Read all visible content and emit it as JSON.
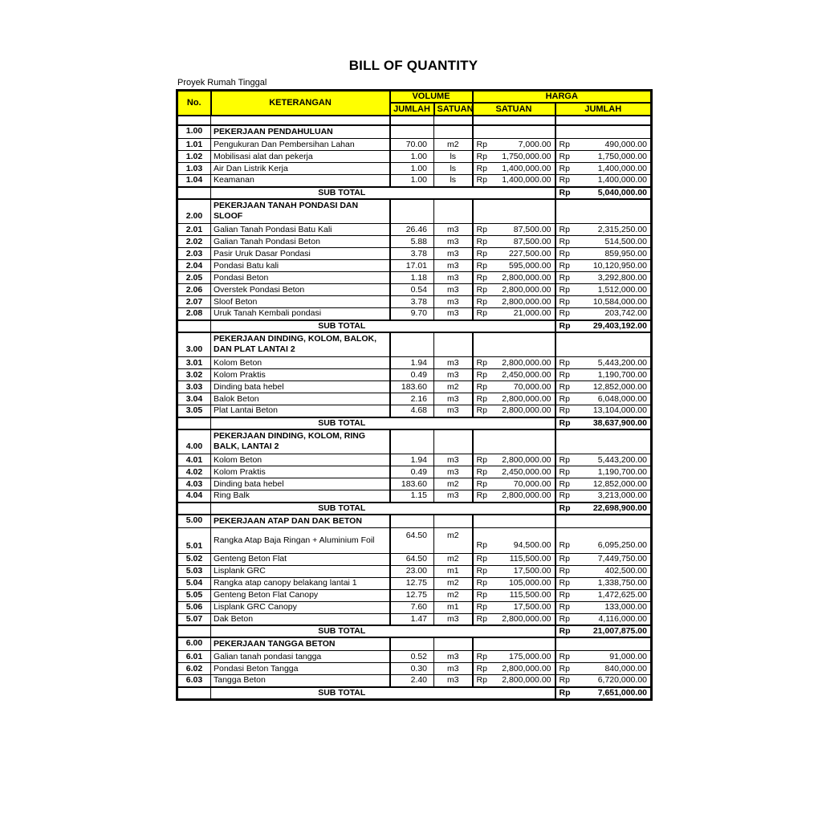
{
  "title": "BILL OF QUANTITY",
  "subtitle": "Proyek Rumah Tinggal",
  "currency": "Rp",
  "sub_total_label": "SUB TOTAL",
  "colors": {
    "header_bg": "#FFFF00",
    "border": "#000000"
  },
  "header": {
    "no": "No.",
    "keterangan": "KETERANGAN",
    "volume": "VOLUME",
    "harga": "HARGA",
    "volume_jumlah": "JUMLAH",
    "volume_satuan": "SATUAN",
    "harga_satuan": "SATUAN",
    "harga_jumlah": "JUMLAH"
  },
  "sections": [
    {
      "no": "1.00",
      "name": "PEKERJAAN PENDAHULUAN",
      "items": [
        {
          "no": "1.01",
          "desc": "Pengukuran Dan Pembersihan Lahan",
          "jumlah": "70.00",
          "satuan": "m2",
          "harga_satuan": "7,000.00",
          "harga_jumlah": "490,000.00"
        },
        {
          "no": "1.02",
          "desc": "Mobilisasi alat dan pekerja",
          "jumlah": "1.00",
          "satuan": "ls",
          "harga_satuan": "1,750,000.00",
          "harga_jumlah": "1,750,000.00"
        },
        {
          "no": "1.03",
          "desc": "Air Dan Listrik Kerja",
          "jumlah": "1.00",
          "satuan": "ls",
          "harga_satuan": "1,400,000.00",
          "harga_jumlah": "1,400,000.00"
        },
        {
          "no": "1.04",
          "desc": "Keamanan",
          "jumlah": "1.00",
          "satuan": "ls",
          "harga_satuan": "1,400,000.00",
          "harga_jumlah": "1,400,000.00"
        }
      ],
      "sub_total": "5,040,000.00"
    },
    {
      "no": "2.00",
      "name": "PEKERJAAN TANAH PONDASI DAN SLOOF",
      "items": [
        {
          "no": "2.01",
          "desc": "Galian Tanah Pondasi Batu Kali",
          "jumlah": "26.46",
          "satuan": "m3",
          "harga_satuan": "87,500.00",
          "harga_jumlah": "2,315,250.00"
        },
        {
          "no": "2.02",
          "desc": "Galian Tanah Pondasi Beton",
          "jumlah": "5.88",
          "satuan": "m3",
          "harga_satuan": "87,500.00",
          "harga_jumlah": "514,500.00"
        },
        {
          "no": "2.03",
          "desc": "Pasir Uruk Dasar Pondasi",
          "jumlah": "3.78",
          "satuan": "m3",
          "harga_satuan": "227,500.00",
          "harga_jumlah": "859,950.00"
        },
        {
          "no": "2.04",
          "desc": "Pondasi Batu kali",
          "jumlah": "17.01",
          "satuan": "m3",
          "harga_satuan": "595,000.00",
          "harga_jumlah": "10,120,950.00"
        },
        {
          "no": "2.05",
          "desc": "Pondasi Beton",
          "jumlah": "1.18",
          "satuan": "m3",
          "harga_satuan": "2,800,000.00",
          "harga_jumlah": "3,292,800.00"
        },
        {
          "no": "2.06",
          "desc": "Overstek Pondasi Beton",
          "jumlah": "0.54",
          "satuan": "m3",
          "harga_satuan": "2,800,000.00",
          "harga_jumlah": "1,512,000.00"
        },
        {
          "no": "2.07",
          "desc": "Sloof Beton",
          "jumlah": "3.78",
          "satuan": "m3",
          "harga_satuan": "2,800,000.00",
          "harga_jumlah": "10,584,000.00"
        },
        {
          "no": "2.08",
          "desc": "Uruk Tanah Kembali pondasi",
          "jumlah": "9.70",
          "satuan": "m3",
          "harga_satuan": "21,000.00",
          "harga_jumlah": "203,742.00"
        }
      ],
      "sub_total": "29,403,192.00"
    },
    {
      "no": "3.00",
      "name": "PEKERJAAN DINDING, KOLOM, BALOK, DAN PLAT LANTAI 2",
      "items": [
        {
          "no": "3.01",
          "desc": "Kolom Beton",
          "jumlah": "1.94",
          "satuan": "m3",
          "harga_satuan": "2,800,000.00",
          "harga_jumlah": "5,443,200.00"
        },
        {
          "no": "3.02",
          "desc": "Kolom Praktis",
          "jumlah": "0.49",
          "satuan": "m3",
          "harga_satuan": "2,450,000.00",
          "harga_jumlah": "1,190,700.00"
        },
        {
          "no": "3.03",
          "desc": "Dinding bata hebel",
          "jumlah": "183.60",
          "satuan": "m2",
          "harga_satuan": "70,000.00",
          "harga_jumlah": "12,852,000.00"
        },
        {
          "no": "3.04",
          "desc": "Balok Beton",
          "jumlah": "2.16",
          "satuan": "m3",
          "harga_satuan": "2,800,000.00",
          "harga_jumlah": "6,048,000.00"
        },
        {
          "no": "3.05",
          "desc": "Plat Lantai Beton",
          "jumlah": "4.68",
          "satuan": "m3",
          "harga_satuan": "2,800,000.00",
          "harga_jumlah": "13,104,000.00"
        }
      ],
      "sub_total": "38,637,900.00"
    },
    {
      "no": "4.00",
      "name": "PEKERJAAN DINDING, KOLOM, RING BALK, LANTAI 2",
      "items": [
        {
          "no": "4.01",
          "desc": "Kolom Beton",
          "jumlah": "1.94",
          "satuan": "m3",
          "harga_satuan": "2,800,000.00",
          "harga_jumlah": "5,443,200.00"
        },
        {
          "no": "4.02",
          "desc": "Kolom Praktis",
          "jumlah": "0.49",
          "satuan": "m3",
          "harga_satuan": "2,450,000.00",
          "harga_jumlah": "1,190,700.00"
        },
        {
          "no": "4.03",
          "desc": "Dinding bata hebel",
          "jumlah": "183.60",
          "satuan": "m2",
          "harga_satuan": "70,000.00",
          "harga_jumlah": "12,852,000.00"
        },
        {
          "no": "4.04",
          "desc": "Ring Balk",
          "jumlah": "1.15",
          "satuan": "m3",
          "harga_satuan": "2,800,000.00",
          "harga_jumlah": "3,213,000.00"
        }
      ],
      "sub_total": "22,698,900.00"
    },
    {
      "no": "5.00",
      "name": "PEKERJAAN ATAP DAN DAK BETON",
      "items": [
        {
          "no": "5.01",
          "desc": "Rangka Atap Baja Ringan + Aluminium Foil",
          "jumlah": "64.50",
          "satuan": "m2",
          "harga_satuan": "94,500.00",
          "harga_jumlah": "6,095,250.00"
        },
        {
          "no": "5.02",
          "desc": "Genteng Beton Flat",
          "jumlah": "64.50",
          "satuan": "m2",
          "harga_satuan": "115,500.00",
          "harga_jumlah": "7,449,750.00"
        },
        {
          "no": "5.03",
          "desc": "Lisplank GRC",
          "jumlah": "23.00",
          "satuan": "m1",
          "harga_satuan": "17,500.00",
          "harga_jumlah": "402,500.00"
        },
        {
          "no": "5.04",
          "desc": "Rangka atap canopy belakang lantai 1",
          "jumlah": "12.75",
          "satuan": "m2",
          "harga_satuan": "105,000.00",
          "harga_jumlah": "1,338,750.00"
        },
        {
          "no": "5.05",
          "desc": "Genteng Beton Flat Canopy",
          "jumlah": "12.75",
          "satuan": "m2",
          "harga_satuan": "115,500.00",
          "harga_jumlah": "1,472,625.00"
        },
        {
          "no": "5.06",
          "desc": "Lisplank GRC Canopy",
          "jumlah": "7.60",
          "satuan": "m1",
          "harga_satuan": "17,500.00",
          "harga_jumlah": "133,000.00"
        },
        {
          "no": "5.07",
          "desc": "Dak Beton",
          "jumlah": "1.47",
          "satuan": "m3",
          "harga_satuan": "2,800,000.00",
          "harga_jumlah": "4,116,000.00"
        }
      ],
      "sub_total": "21,007,875.00"
    },
    {
      "no": "6.00",
      "name": "PEKERJAAN TANGGA BETON",
      "items": [
        {
          "no": "6.01",
          "desc": "Galian tanah pondasi tangga",
          "jumlah": "0.52",
          "satuan": "m3",
          "harga_satuan": "175,000.00",
          "harga_jumlah": "91,000.00"
        },
        {
          "no": "6.02",
          "desc": "Pondasi Beton Tangga",
          "jumlah": "0.30",
          "satuan": "m3",
          "harga_satuan": "2,800,000.00",
          "harga_jumlah": "840,000.00"
        },
        {
          "no": "6.03",
          "desc": "Tangga Beton",
          "jumlah": "2.40",
          "satuan": "m3",
          "harga_satuan": "2,800,000.00",
          "harga_jumlah": "6,720,000.00"
        }
      ],
      "sub_total": "7,651,000.00"
    }
  ]
}
